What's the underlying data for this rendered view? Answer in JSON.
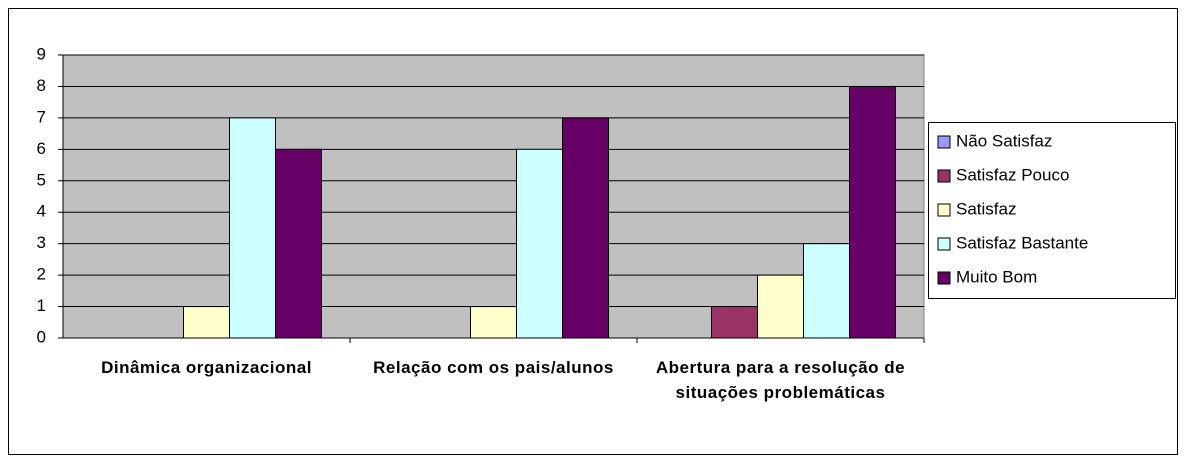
{
  "chart_data": {
    "type": "bar",
    "categories": [
      "Dinâmica organizacional",
      "Relação com os pais/alunos",
      "Abertura para a resolução de situações problemáticas"
    ],
    "series": [
      {
        "name": "Não Satisfaz",
        "color": "#9999ff",
        "values": [
          0,
          0,
          0
        ]
      },
      {
        "name": "Satisfaz Pouco",
        "color": "#993366",
        "values": [
          0,
          0,
          1
        ]
      },
      {
        "name": "Satisfaz",
        "color": "#ffffcc",
        "values": [
          1,
          1,
          2
        ]
      },
      {
        "name": "Satisfaz Bastante",
        "color": "#ccffff",
        "values": [
          7,
          6,
          3
        ]
      },
      {
        "name": "Muito Bom",
        "color": "#660066",
        "values": [
          6,
          7,
          8
        ]
      }
    ],
    "ylim": [
      0,
      9
    ],
    "yticks": [
      0,
      1,
      2,
      3,
      4,
      5,
      6,
      7,
      8,
      9
    ],
    "grid": true,
    "legend": "right"
  }
}
